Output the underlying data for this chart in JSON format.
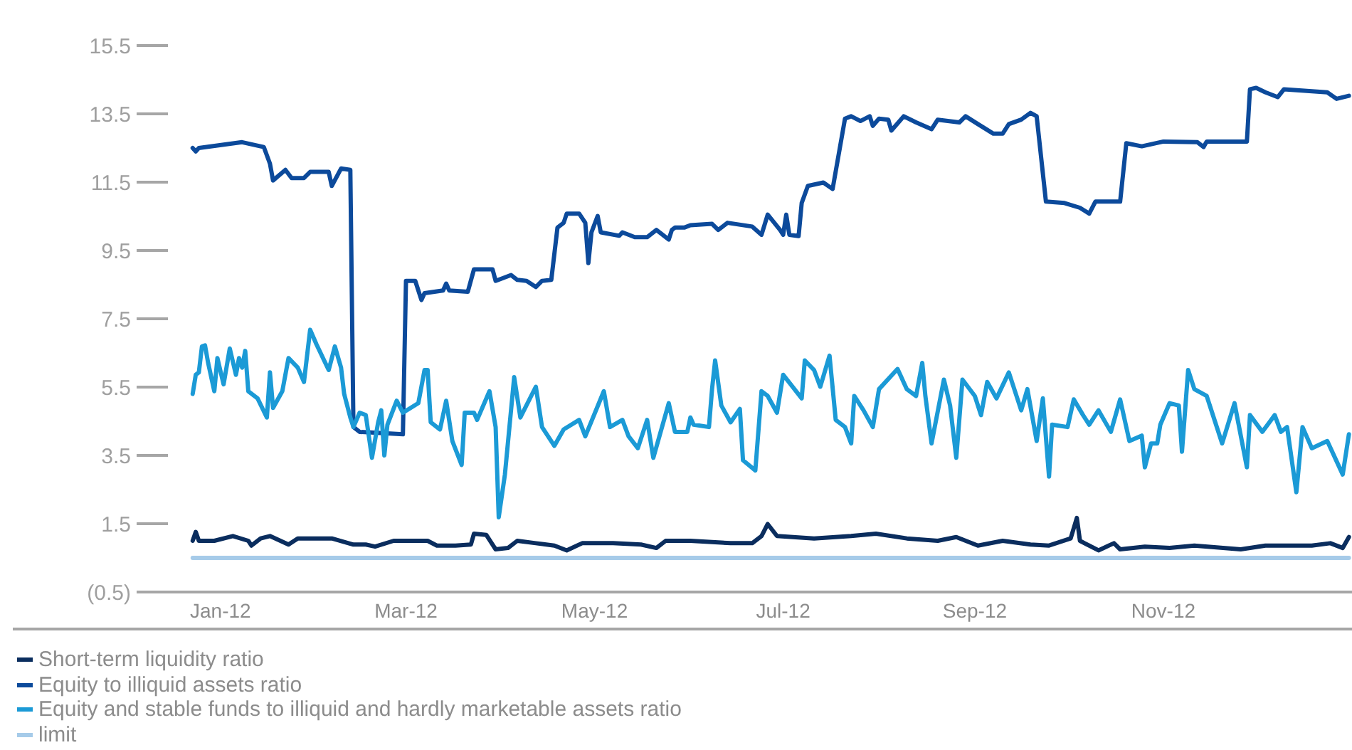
{
  "chart_data": {
    "type": "line",
    "series": [
      {
        "name": "Short-term liquidity ratio",
        "color": "#0a2d5e",
        "x": [
          "2011-12-23",
          "2011-12-24",
          "2011-12-25",
          "2011-12-30",
          "2012-01-05",
          "2012-01-10",
          "2012-01-11",
          "2012-01-14",
          "2012-01-17",
          "2012-01-23",
          "2012-01-26",
          "2012-02-06",
          "2012-02-13",
          "2012-02-17",
          "2012-02-20",
          "2012-02-26",
          "2012-03-08",
          "2012-03-11",
          "2012-03-17",
          "2012-03-22",
          "2012-03-23",
          "2012-03-27",
          "2012-03-30",
          "2012-04-03",
          "2012-04-06",
          "2012-04-12",
          "2012-04-18",
          "2012-04-22",
          "2012-04-27",
          "2012-05-07",
          "2012-05-16",
          "2012-05-21",
          "2012-05-24",
          "2012-06-01",
          "2012-06-14",
          "2012-06-21",
          "2012-06-24",
          "2012-06-26",
          "2012-06-29",
          "2012-07-11",
          "2012-07-23",
          "2012-07-31",
          "2012-08-10",
          "2012-08-20",
          "2012-08-26",
          "2012-09-02",
          "2012-09-10",
          "2012-09-19",
          "2012-09-25",
          "2012-10-02",
          "2012-10-04",
          "2012-10-05",
          "2012-10-11",
          "2012-10-16",
          "2012-10-18",
          "2012-10-26",
          "2012-11-03",
          "2012-11-11",
          "2012-11-26",
          "2012-12-04",
          "2012-12-19",
          "2012-12-25",
          "2012-12-29",
          "2012-12-31"
        ],
        "values": [
          1.0,
          1.26,
          1.0,
          1.0,
          1.14,
          1.0,
          0.86,
          1.07,
          1.14,
          0.89,
          1.07,
          1.07,
          0.89,
          0.89,
          0.83,
          1.0,
          1.0,
          0.86,
          0.86,
          0.89,
          1.21,
          1.17,
          0.75,
          0.79,
          1.0,
          0.93,
          0.86,
          0.72,
          0.93,
          0.93,
          0.89,
          0.79,
          1.0,
          1.0,
          0.93,
          0.93,
          1.14,
          1.49,
          1.14,
          1.07,
          1.14,
          1.21,
          1.07,
          1.0,
          1.11,
          0.86,
          1.0,
          0.89,
          0.86,
          1.07,
          1.67,
          1.0,
          0.72,
          0.93,
          0.75,
          0.83,
          0.79,
          0.86,
          0.75,
          0.86,
          0.86,
          0.93,
          0.79,
          1.11
        ]
      },
      {
        "name": "Equity to illiquid assets ratio",
        "color": "#0c4a9b",
        "x": [
          "2011-12-23",
          "2011-12-24",
          "2011-12-25",
          "2012-01-08",
          "2012-01-15",
          "2012-01-17",
          "2012-01-18",
          "2012-01-22",
          "2012-01-24",
          "2012-01-28",
          "2012-01-30",
          "2012-02-05",
          "2012-02-06",
          "2012-02-09",
          "2012-02-12",
          "2012-02-13",
          "2012-02-15",
          "2012-02-29",
          "2012-03-01",
          "2012-03-04",
          "2012-03-06",
          "2012-03-07",
          "2012-03-13",
          "2012-03-14",
          "2012-03-15",
          "2012-03-21",
          "2012-03-23",
          "2012-03-29",
          "2012-03-30",
          "2012-04-04",
          "2012-04-06",
          "2012-04-09",
          "2012-04-12",
          "2012-04-14",
          "2012-04-17",
          "2012-04-19",
          "2012-04-21",
          "2012-04-22",
          "2012-04-26",
          "2012-04-28",
          "2012-04-29",
          "2012-04-30",
          "2012-05-02",
          "2012-05-03",
          "2012-05-09",
          "2012-05-10",
          "2012-05-14",
          "2012-05-18",
          "2012-05-21",
          "2012-05-25",
          "2012-05-26",
          "2012-05-27",
          "2012-05-30",
          "2012-06-01",
          "2012-06-08",
          "2012-06-10",
          "2012-06-13",
          "2012-06-21",
          "2012-06-24",
          "2012-06-26",
          "2012-06-30",
          "2012-07-01",
          "2012-07-02",
          "2012-07-03",
          "2012-07-06",
          "2012-07-07",
          "2012-07-09",
          "2012-07-14",
          "2012-07-17",
          "2012-07-21",
          "2012-07-23",
          "2012-07-26",
          "2012-07-29",
          "2012-07-30",
          "2012-08-01",
          "2012-08-04",
          "2012-08-05",
          "2012-08-09",
          "2012-08-13",
          "2012-08-18",
          "2012-08-20",
          "2012-08-27",
          "2012-08-29",
          "2012-09-02",
          "2012-09-07",
          "2012-09-10",
          "2012-09-12",
          "2012-09-16",
          "2012-09-19",
          "2012-09-21",
          "2012-09-24",
          "2012-09-30",
          "2012-10-05",
          "2012-10-08",
          "2012-10-10",
          "2012-10-18",
          "2012-10-20",
          "2012-10-25",
          "2012-11-01",
          "2012-11-12",
          "2012-11-14",
          "2012-11-15",
          "2012-11-28",
          "2012-11-29",
          "2012-12-01",
          "2012-12-04",
          "2012-12-08",
          "2012-12-10",
          "2012-12-24",
          "2012-12-27",
          "2012-12-31"
        ],
        "values": [
          12.5,
          12.4,
          12.5,
          12.67,
          12.53,
          12.04,
          11.55,
          11.86,
          11.62,
          11.62,
          11.8,
          11.8,
          11.39,
          11.9,
          11.86,
          4.33,
          4.19,
          4.12,
          8.61,
          8.61,
          8.05,
          8.25,
          8.33,
          8.53,
          8.33,
          8.29,
          8.95,
          8.95,
          8.61,
          8.78,
          8.64,
          8.61,
          8.43,
          8.61,
          8.64,
          10.17,
          10.31,
          10.58,
          10.58,
          10.31,
          9.13,
          10.03,
          10.51,
          10.03,
          9.93,
          10.03,
          9.89,
          9.89,
          10.1,
          9.82,
          10.1,
          10.17,
          10.17,
          10.24,
          10.28,
          10.1,
          10.31,
          10.2,
          9.96,
          10.55,
          10.1,
          9.96,
          10.55,
          9.96,
          9.92,
          10.89,
          11.39,
          11.49,
          11.3,
          13.36,
          13.43,
          13.29,
          13.43,
          13.15,
          13.36,
          13.33,
          13.01,
          13.43,
          13.25,
          13.05,
          13.33,
          13.25,
          13.43,
          13.2,
          12.92,
          12.92,
          13.2,
          13.33,
          13.53,
          13.43,
          10.93,
          10.89,
          10.75,
          10.58,
          10.93,
          10.93,
          12.64,
          12.55,
          12.69,
          12.67,
          12.53,
          12.69,
          12.69,
          14.22,
          14.26,
          14.13,
          13.99,
          14.22,
          14.13,
          13.94,
          14.03
        ]
      },
      {
        "name": "Equity and stable funds to illiquid and hardly marketable assets ratio",
        "color": "#1b9ad6",
        "x": [
          "2011-12-23",
          "2011-12-24",
          "2011-12-25",
          "2011-12-26",
          "2011-12-27",
          "2011-12-28",
          "2011-12-30",
          "2011-12-31",
          "2012-01-02",
          "2012-01-04",
          "2012-01-06",
          "2012-01-07",
          "2012-01-08",
          "2012-01-09",
          "2012-01-10",
          "2012-01-13",
          "2012-01-16",
          "2012-01-17",
          "2012-01-18",
          "2012-01-21",
          "2012-01-23",
          "2012-01-26",
          "2012-01-28",
          "2012-01-30",
          "2012-02-01",
          "2012-02-05",
          "2012-02-07",
          "2012-02-09",
          "2012-02-10",
          "2012-02-12",
          "2012-02-13",
          "2012-02-15",
          "2012-02-17",
          "2012-02-19",
          "2012-02-21",
          "2012-02-22",
          "2012-02-23",
          "2012-02-24",
          "2012-02-27",
          "2012-02-29",
          "2012-03-05",
          "2012-03-07",
          "2012-03-08",
          "2012-03-09",
          "2012-03-12",
          "2012-03-14",
          "2012-03-16",
          "2012-03-19",
          "2012-03-20",
          "2012-03-23",
          "2012-03-24",
          "2012-03-28",
          "2012-03-30",
          "2012-03-31",
          "2012-04-02",
          "2012-04-05",
          "2012-04-07",
          "2012-04-12",
          "2012-04-14",
          "2012-04-18",
          "2012-04-21",
          "2012-04-26",
          "2012-04-28",
          "2012-05-04",
          "2012-05-06",
          "2012-05-10",
          "2012-05-12",
          "2012-05-15",
          "2012-05-18",
          "2012-05-20",
          "2012-05-25",
          "2012-05-27",
          "2012-05-31",
          "2012-06-01",
          "2012-06-02",
          "2012-06-07",
          "2012-06-08",
          "2012-06-09",
          "2012-06-11",
          "2012-06-14",
          "2012-06-17",
          "2012-06-18",
          "2012-06-22",
          "2012-06-24",
          "2012-06-26",
          "2012-06-29",
          "2012-07-01",
          "2012-07-07",
          "2012-07-08",
          "2012-07-11",
          "2012-07-13",
          "2012-07-16",
          "2012-07-18",
          "2012-07-21",
          "2012-07-23",
          "2012-07-24",
          "2012-07-27",
          "2012-07-30",
          "2012-08-01",
          "2012-08-07",
          "2012-08-10",
          "2012-08-13",
          "2012-08-15",
          "2012-08-16",
          "2012-08-18",
          "2012-08-22",
          "2012-08-24",
          "2012-08-26",
          "2012-08-28",
          "2012-09-01",
          "2012-09-03",
          "2012-09-05",
          "2012-09-08",
          "2012-09-12",
          "2012-09-16",
          "2012-09-18",
          "2012-09-21",
          "2012-09-23",
          "2012-09-25",
          "2012-09-26",
          "2012-10-01",
          "2012-10-03",
          "2012-10-06",
          "2012-10-08",
          "2012-10-11",
          "2012-10-15",
          "2012-10-18",
          "2012-10-21",
          "2012-10-25",
          "2012-10-26",
          "2012-10-28",
          "2012-10-30",
          "2012-10-31",
          "2012-11-03",
          "2012-11-06",
          "2012-11-07",
          "2012-11-09",
          "2012-11-11",
          "2012-11-15",
          "2012-11-20",
          "2012-11-24",
          "2012-11-28",
          "2012-11-29",
          "2012-12-03",
          "2012-12-07",
          "2012-12-09",
          "2012-12-11",
          "2012-12-14",
          "2012-12-16",
          "2012-12-19",
          "2012-12-24",
          "2012-12-29",
          "2012-12-31"
        ],
        "values": [
          5.3,
          5.86,
          5.93,
          6.69,
          6.72,
          6.21,
          5.38,
          6.35,
          5.58,
          6.63,
          5.86,
          6.35,
          6.07,
          6.56,
          5.38,
          5.17,
          4.61,
          5.93,
          4.89,
          5.38,
          6.35,
          6.07,
          5.65,
          7.18,
          6.76,
          6.0,
          6.69,
          6.07,
          5.3,
          4.61,
          4.33,
          4.75,
          4.68,
          3.43,
          4.47,
          4.82,
          3.5,
          4.4,
          5.1,
          4.75,
          5.03,
          6.0,
          6.0,
          4.47,
          4.26,
          5.1,
          3.92,
          3.22,
          4.75,
          4.75,
          4.54,
          5.38,
          4.33,
          1.69,
          2.94,
          5.79,
          4.61,
          5.51,
          4.33,
          3.78,
          4.26,
          4.54,
          4.06,
          5.38,
          4.33,
          4.54,
          4.06,
          3.71,
          4.54,
          3.43,
          5.03,
          4.19,
          4.19,
          4.61,
          4.4,
          4.33,
          5.44,
          6.28,
          4.96,
          4.47,
          4.86,
          3.36,
          3.06,
          5.38,
          5.24,
          4.75,
          5.86,
          5.17,
          6.28,
          6.0,
          5.51,
          6.42,
          4.54,
          4.33,
          3.85,
          5.24,
          4.82,
          4.33,
          5.44,
          6.03,
          5.44,
          5.24,
          6.21,
          5.24,
          3.85,
          5.72,
          4.96,
          3.43,
          5.72,
          5.24,
          4.68,
          5.65,
          5.17,
          5.93,
          4.82,
          5.44,
          3.92,
          5.17,
          2.88,
          4.4,
          4.33,
          5.14,
          4.68,
          4.4,
          4.82,
          4.19,
          5.14,
          3.92,
          4.08,
          3.15,
          3.85,
          3.85,
          4.4,
          5.03,
          4.96,
          3.61,
          6.0,
          5.44,
          5.24,
          3.85,
          5.03,
          3.15,
          4.68,
          4.19,
          4.68,
          4.19,
          4.33,
          2.42,
          4.33,
          3.71,
          3.92,
          2.94,
          4.12
        ]
      },
      {
        "name": "limit",
        "color": "#a6cbe9",
        "x": [
          "2011-12-23",
          "2012-12-31"
        ],
        "values": [
          0.5,
          0.5
        ]
      }
    ],
    "xlim": [
      "2011-12-15",
      "2013-01-01"
    ],
    "xticks": [
      {
        "value": "2012-01-01",
        "label": "Jan-12"
      },
      {
        "value": "2012-03-01",
        "label": "Mar-12"
      },
      {
        "value": "2012-05-01",
        "label": "May-12"
      },
      {
        "value": "2012-07-01",
        "label": "Jul-12"
      },
      {
        "value": "2012-09-01",
        "label": "Sep-12"
      },
      {
        "value": "2012-11-01",
        "label": "Nov-12"
      }
    ],
    "ylim": [
      -0.5,
      15.5
    ],
    "yticks": [
      {
        "value": -0.5,
        "label": "(0.5)"
      },
      1.5,
      3.5,
      5.5,
      7.5,
      9.5,
      11.5,
      13.5,
      15.5
    ],
    "legend": "bottom left",
    "marker": "none"
  }
}
